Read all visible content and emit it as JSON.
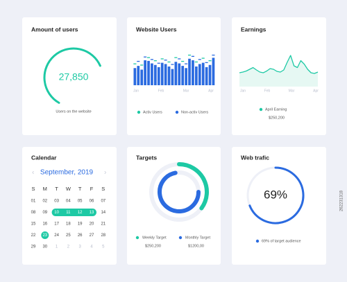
{
  "side_id": "262231318",
  "amount_of_users": {
    "title": "Amount of users",
    "value": "27,850",
    "caption": "Users on the website",
    "gauge_percent": 60
  },
  "website_users": {
    "title": "Website Users",
    "bars": [
      55,
      62,
      50,
      80,
      78,
      70,
      65,
      58,
      72,
      68,
      60,
      52,
      75,
      70,
      62,
      55,
      85,
      80,
      60,
      68,
      72,
      58,
      65,
      88
    ],
    "markers": [
      70,
      78,
      66,
      92,
      90,
      84,
      80,
      72,
      86,
      82,
      76,
      68,
      90,
      86,
      78,
      70,
      98,
      94,
      76,
      84,
      88,
      74,
      80,
      98
    ],
    "x_labels": [
      "Jan",
      "Feb",
      "Mar",
      "Apr"
    ],
    "legend": [
      {
        "name": "Activ Users",
        "color": "#1dc9a4"
      },
      {
        "name": "Non-activ Users",
        "color": "#2b6be0"
      }
    ]
  },
  "earnings": {
    "title": "Earnings",
    "line": [
      40,
      42,
      45,
      50,
      55,
      48,
      42,
      40,
      45,
      52,
      50,
      44,
      42,
      48,
      70,
      90,
      60,
      55,
      75,
      65,
      50,
      40,
      38,
      42
    ],
    "x_labels": [
      "Jan",
      "Feb",
      "Mar",
      "Apr"
    ],
    "legend": "April Earning",
    "amount": "$250,200"
  },
  "calendar": {
    "title": "Calendar",
    "month": "September, 2019",
    "prev": "‹",
    "next": "›",
    "weekdays": [
      "S",
      "M",
      "T",
      "W",
      "T",
      "F",
      "S"
    ],
    "weeks": [
      [
        "01",
        "02",
        "03",
        "04",
        "05",
        "06",
        "07"
      ],
      [
        "08",
        "09",
        "10",
        "11",
        "12",
        "13",
        "14"
      ],
      [
        "15",
        "16",
        "17",
        "18",
        "19",
        "20",
        "21"
      ],
      [
        "22",
        "23",
        "24",
        "25",
        "26",
        "27",
        "28"
      ],
      [
        "29",
        "30",
        "1",
        "2",
        "3",
        "4",
        "5"
      ]
    ],
    "range_row": 1,
    "range_from": 2,
    "range_to": 5,
    "today": [
      3,
      1
    ],
    "next_month_from": [
      4,
      2
    ]
  },
  "targets": {
    "title": "Targets",
    "rings": [
      {
        "name": "Weekly Target",
        "amount": "$250,200",
        "percent": 35,
        "color": "#1dc9a4"
      },
      {
        "name": "Monthly Target",
        "amount": "$1200,00",
        "percent": 72,
        "color": "#2b6be0"
      }
    ]
  },
  "web_traffic": {
    "title": "Web trafic",
    "percent": 69,
    "percent_label": "69%",
    "caption": "69% of target audience"
  }
}
